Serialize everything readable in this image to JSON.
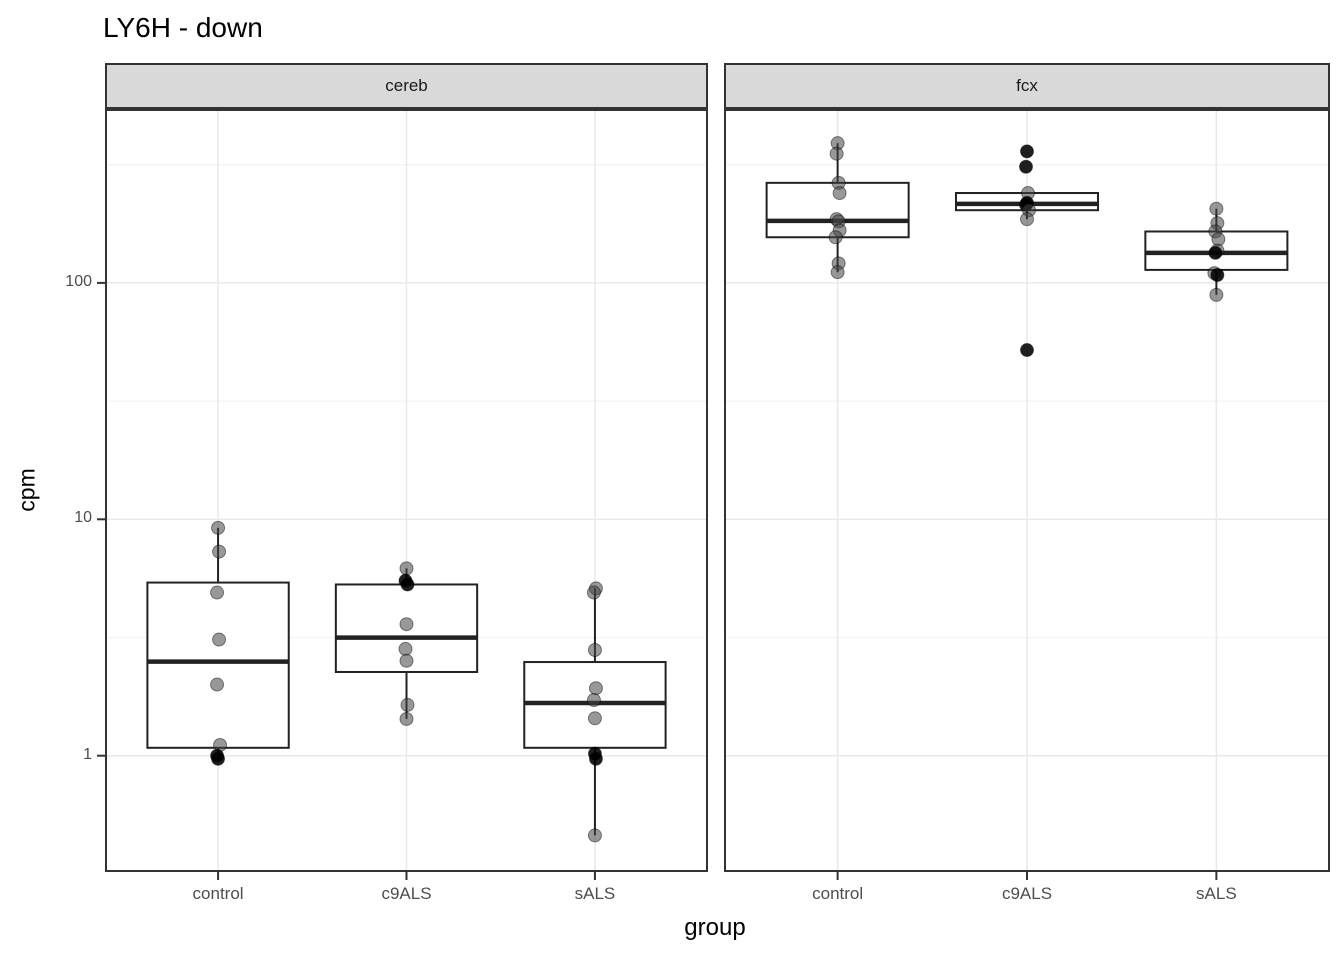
{
  "title": "LY6H - down",
  "facet_labels": [
    "cereb",
    "fcx"
  ],
  "y_axis": {
    "label": "cpm",
    "ticks": [
      "100",
      "10",
      "1"
    ],
    "tick_values": [
      100,
      10,
      1
    ],
    "minor_values": [
      316,
      31.6,
      3.16
    ]
  },
  "x_axis": {
    "label": "group",
    "groups": [
      "control",
      "c9ALS",
      "sALS"
    ]
  },
  "colors": {
    "strip_fill": "#d9d9d9",
    "panel_border": "#333333",
    "grid_major": "#e9e9e9",
    "grid_minor": "#f3f3f3",
    "box_stroke": "#222222",
    "point_gray": "#444444",
    "point_dark": "#000000",
    "tick_text": "#4d4d4d"
  },
  "chart_data": {
    "type": "boxplot-jitter",
    "title": "LY6H - down",
    "xlabel": "group",
    "ylabel": "cpm",
    "y_scale": "log10",
    "ylim": [
      0.33,
      545
    ],
    "grid": true,
    "facets": [
      {
        "name": "cereb",
        "groups": [
          {
            "name": "control",
            "box": {
              "whisker_low": 0.97,
              "q1": 1.08,
              "median": 2.5,
              "q3": 5.4,
              "whisker_high": 9.2
            },
            "points": [
              {
                "v": 9.2,
                "dx": 0
              },
              {
                "v": 7.3,
                "dx": 1
              },
              {
                "v": 4.9,
                "dx": -1
              },
              {
                "v": 3.1,
                "dx": 1
              },
              {
                "v": 2.0,
                "dx": -1
              },
              {
                "v": 1.11,
                "dx": 2
              },
              {
                "v": 1.0,
                "dx": -1,
                "dark": true
              },
              {
                "v": 0.97,
                "dx": 0,
                "dark": true
              }
            ]
          },
          {
            "name": "c9ALS",
            "box": {
              "whisker_low": 1.43,
              "q1": 2.26,
              "median": 3.16,
              "q3": 5.3,
              "whisker_high": 6.2
            },
            "points": [
              {
                "v": 6.2,
                "dx": 0
              },
              {
                "v": 5.5,
                "dx": -1,
                "dark": true
              },
              {
                "v": 5.3,
                "dx": 1,
                "dark": true
              },
              {
                "v": 3.6,
                "dx": 0
              },
              {
                "v": 2.83,
                "dx": -1
              },
              {
                "v": 2.52,
                "dx": 0
              },
              {
                "v": 1.64,
                "dx": 1
              },
              {
                "v": 1.43,
                "dx": 0
              }
            ]
          },
          {
            "name": "sALS",
            "box": {
              "whisker_low": 0.46,
              "q1": 1.08,
              "median": 1.67,
              "q3": 2.49,
              "whisker_high": 5.1
            },
            "points": [
              {
                "v": 5.1,
                "dx": 1
              },
              {
                "v": 4.9,
                "dx": -1
              },
              {
                "v": 2.8,
                "dx": 0
              },
              {
                "v": 1.93,
                "dx": 1
              },
              {
                "v": 1.72,
                "dx": -1
              },
              {
                "v": 1.44,
                "dx": 0
              },
              {
                "v": 1.02,
                "dx": 0,
                "dark": true
              },
              {
                "v": 0.97,
                "dx": 1,
                "dark": true
              },
              {
                "v": 0.46,
                "dx": 0
              }
            ]
          }
        ]
      },
      {
        "name": "fcx",
        "groups": [
          {
            "name": "control",
            "box": {
              "whisker_low": 111,
              "q1": 156,
              "median": 183,
              "q3": 265,
              "whisker_high": 390
            },
            "points": [
              {
                "v": 390,
                "dx": 0
              },
              {
                "v": 352,
                "dx": -1
              },
              {
                "v": 265,
                "dx": 1
              },
              {
                "v": 240,
                "dx": 2
              },
              {
                "v": 186,
                "dx": -1
              },
              {
                "v": 182,
                "dx": 1
              },
              {
                "v": 167,
                "dx": 2
              },
              {
                "v": 156,
                "dx": -2
              },
              {
                "v": 121,
                "dx": 1
              },
              {
                "v": 111,
                "dx": 0
              }
            ]
          },
          {
            "name": "c9ALS",
            "box": {
              "whisker_low": 186,
              "q1": 203,
              "median": 216,
              "q3": 240,
              "whisker_high": 240
            },
            "points": [
              {
                "v": 360,
                "dx": 0,
                "dark": true
              },
              {
                "v": 310,
                "dx": -1,
                "dark": true
              },
              {
                "v": 240,
                "dx": 1
              },
              {
                "v": 218,
                "dx": 0,
                "dark": true
              },
              {
                "v": 214,
                "dx": -1,
                "dark": true
              },
              {
                "v": 203,
                "dx": 2
              },
              {
                "v": 186,
                "dx": 0
              },
              {
                "v": 52,
                "dx": 0,
                "dark": true
              }
            ]
          },
          {
            "name": "sALS",
            "box": {
              "whisker_low": 89,
              "q1": 113.5,
              "median": 134,
              "q3": 165,
              "whisker_high": 206
            },
            "points": [
              {
                "v": 206,
                "dx": 0
              },
              {
                "v": 179,
                "dx": 1
              },
              {
                "v": 165,
                "dx": -1
              },
              {
                "v": 153,
                "dx": 2
              },
              {
                "v": 137,
                "dx": 1
              },
              {
                "v": 134,
                "dx": -1,
                "dark": true
              },
              {
                "v": 110,
                "dx": -2
              },
              {
                "v": 108,
                "dx": 1,
                "dark": true
              },
              {
                "v": 89,
                "dx": 0
              }
            ]
          }
        ]
      }
    ]
  }
}
